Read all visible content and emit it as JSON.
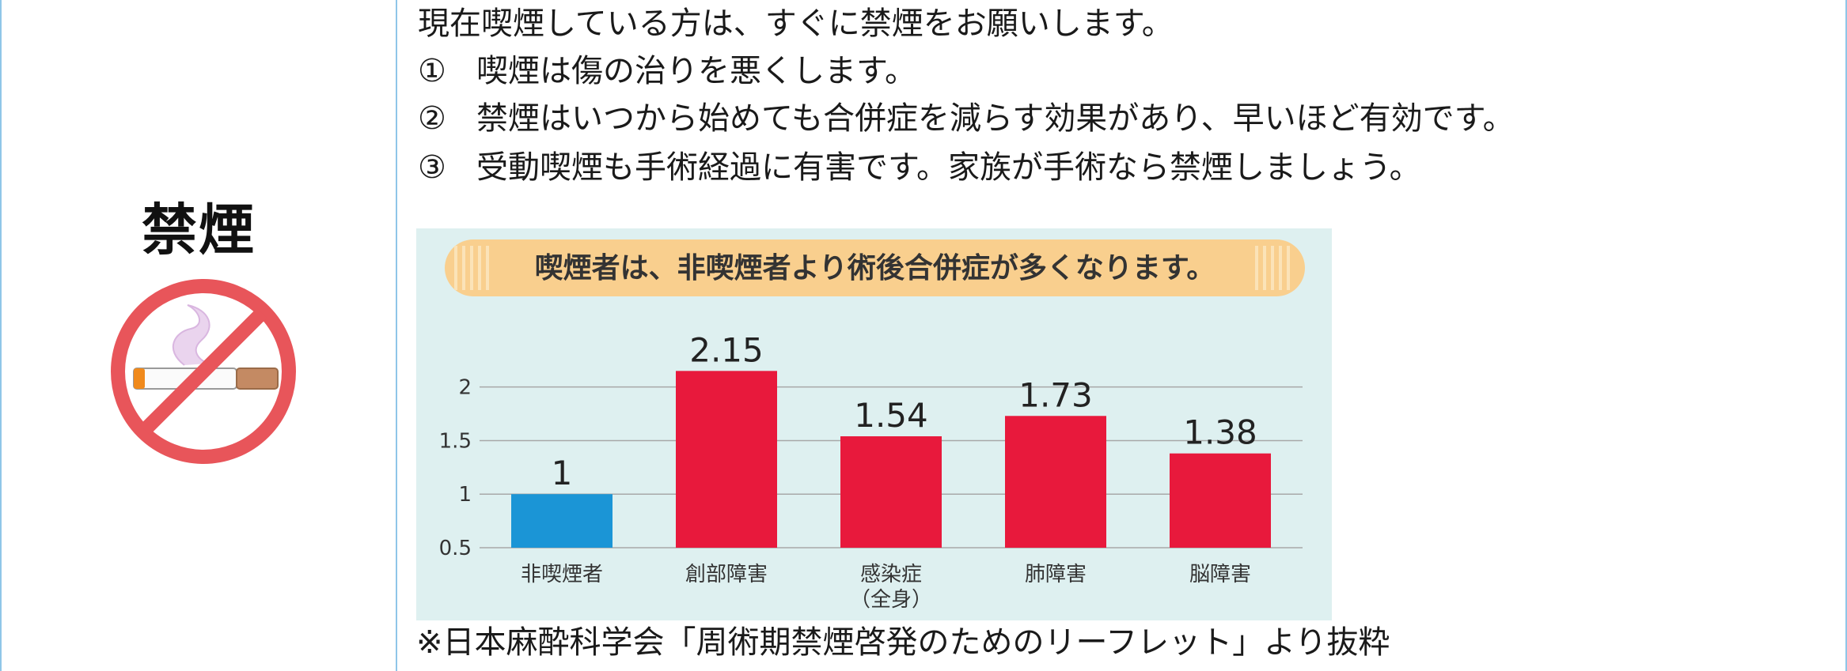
{
  "left": {
    "heading": "禁煙",
    "icon": "no-smoking-icon"
  },
  "content": {
    "intro": "現在喫煙している方は、すぐに禁煙をお願いします。",
    "items": [
      {
        "num": "①",
        "text": "喫煙は傷の治りを悪くします。"
      },
      {
        "num": "②",
        "text": "禁煙はいつから始めても合併症を減らす効果があり、早いほど有効です。"
      },
      {
        "num": "③",
        "text": "受動喫煙も手術経過に有害です。家族が手術なら禁煙しましょう。"
      }
    ],
    "source": "※日本麻酔科学会「周術期禁煙啓発のためのリーフレット」より抜粋"
  },
  "colors": {
    "border": "#8fc6e8",
    "chart_bg": "#def0f0",
    "banner": "#f9cf8e",
    "nonsmoker_bar": "#1b95d6",
    "smoker_bar": "#e8193c",
    "no_sign_red": "#e8555a"
  },
  "chart_data": {
    "type": "bar",
    "title": "喫煙者は、非喫煙者より術後合併症が多くなります。",
    "categories": [
      "非喫煙者",
      "創部障害",
      "感染症（全身）",
      "肺障害",
      "脳障害"
    ],
    "category_lines": [
      [
        "非喫煙者"
      ],
      [
        "創部障害"
      ],
      [
        "感染症",
        "（全身）"
      ],
      [
        "肺障害"
      ],
      [
        "脳障害"
      ]
    ],
    "values": [
      1,
      2.15,
      1.54,
      1.73,
      1.38
    ],
    "value_labels": [
      "1",
      "2.15",
      "1.54",
      "1.73",
      "1.38"
    ],
    "yticks": [
      "0.5",
      "1",
      "1.5",
      "2"
    ],
    "ylim": [
      0.5,
      2.3
    ],
    "grid": true,
    "xlabel": "",
    "ylabel": ""
  }
}
